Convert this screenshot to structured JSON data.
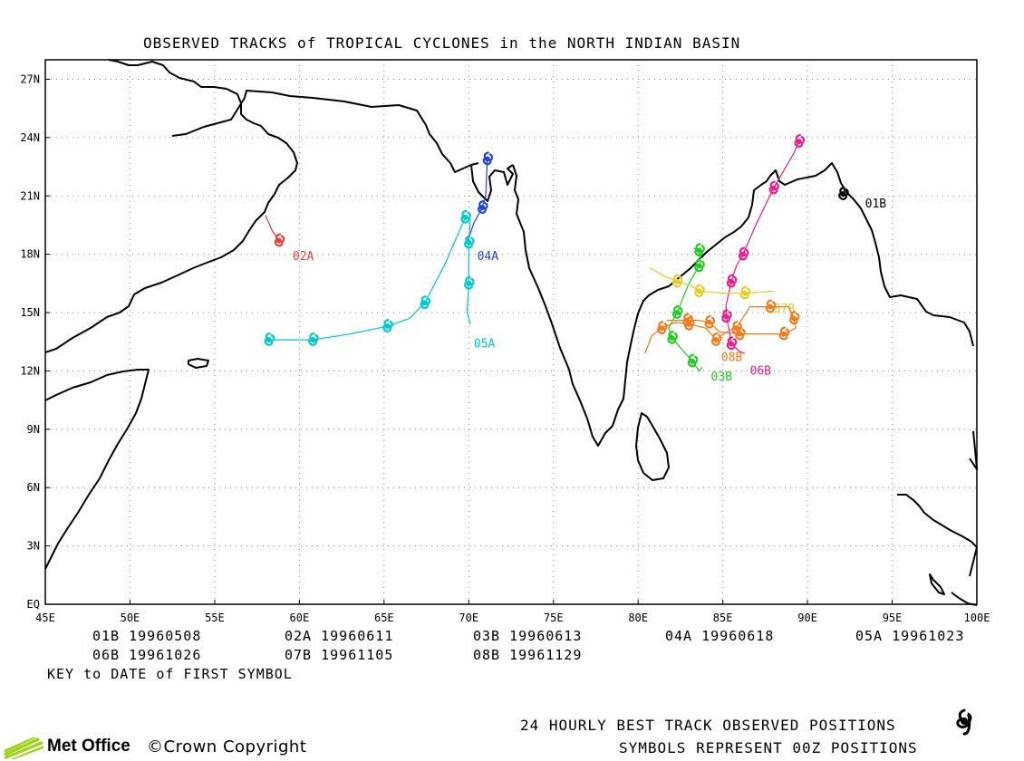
{
  "title": "OBSERVED TRACKS of TROPICAL CYCLONES in the NORTH INDIAN BASIN",
  "axes": {
    "x_ticks": [
      "45E",
      "50E",
      "55E",
      "60E",
      "65E",
      "70E",
      "75E",
      "80E",
      "85E",
      "90E",
      "95E",
      "100E"
    ],
    "y_ticks": [
      "EQ",
      "3N",
      "6N",
      "9N",
      "12N",
      "15N",
      "18N",
      "21N",
      "24N",
      "27N"
    ],
    "lon_range": [
      45,
      100
    ],
    "lat_range": [
      0,
      28
    ],
    "grid": "dotted"
  },
  "storms": [
    {
      "id": "01B",
      "color": "#000000",
      "first_date": "19960508",
      "points": [
        [
          92.2,
          21.4
        ],
        [
          92.1,
          21.1
        ]
      ],
      "label_pos": [
        93.4,
        20.4
      ]
    },
    {
      "id": "02A",
      "color": "#e8403a",
      "first_date": "19960611",
      "points": [
        [
          58.0,
          20.0
        ],
        [
          58.4,
          19.2
        ],
        [
          58.8,
          18.7
        ]
      ],
      "label_pos": [
        59.6,
        17.7
      ]
    },
    {
      "id": "03B",
      "color": "#22cc22",
      "first_date": "19960613",
      "points": [
        [
          83.8,
          12.2
        ],
        [
          83.6,
          12.0
        ],
        [
          83.2,
          12.5
        ],
        [
          82.7,
          13.0
        ],
        [
          82.0,
          13.7
        ],
        [
          81.8,
          14.2
        ],
        [
          82.3,
          15.0
        ],
        [
          83.0,
          16.5
        ],
        [
          83.6,
          17.4
        ],
        [
          83.7,
          17.8
        ],
        [
          83.6,
          18.2
        ],
        [
          83.3,
          18.3
        ]
      ],
      "label_pos": [
        84.3,
        11.5
      ]
    },
    {
      "id": "04A",
      "color": "#2244dd",
      "first_date": "19960618",
      "points": [
        [
          69.9,
          18.6
        ],
        [
          70.3,
          19.6
        ],
        [
          70.8,
          20.4
        ],
        [
          71.0,
          21.0
        ],
        [
          71.1,
          22.9
        ]
      ],
      "label_pos": [
        70.5,
        17.7
      ]
    },
    {
      "id": "05A",
      "color": "#00c8d0",
      "first_date": "19961023",
      "points": [
        [
          70.1,
          14.4
        ],
        [
          69.9,
          15.0
        ],
        [
          70.0,
          16.5
        ],
        [
          70.0,
          17.7
        ],
        [
          70.0,
          18.6
        ],
        [
          70.1,
          19.8
        ],
        [
          69.8,
          19.9
        ],
        [
          68.6,
          17.5
        ],
        [
          67.4,
          15.5
        ],
        [
          66.5,
          14.7
        ],
        [
          65.2,
          14.3
        ],
        [
          63.0,
          13.9
        ],
        [
          60.8,
          13.6
        ],
        [
          60.6,
          13.6
        ],
        [
          58.2,
          13.6
        ]
      ],
      "label_pos": [
        70.3,
        13.2
      ]
    },
    {
      "id": "06B",
      "color": "#ee1c8c",
      "first_date": "19961026",
      "points": [
        [
          86.3,
          12.9
        ],
        [
          86.0,
          13.0
        ],
        [
          85.5,
          13.4
        ],
        [
          85.4,
          14.0
        ],
        [
          85.2,
          14.8
        ],
        [
          85.2,
          15.4
        ],
        [
          85.5,
          16.6
        ],
        [
          85.8,
          17.4
        ],
        [
          86.2,
          18.0
        ],
        [
          87.0,
          19.6
        ],
        [
          88.0,
          21.4
        ],
        [
          89.2,
          23.2
        ],
        [
          89.5,
          23.8
        ]
      ],
      "label_pos": [
        86.6,
        11.8
      ]
    },
    {
      "id": "07B",
      "color": "#e8cc2a",
      "first_date": "19961105",
      "points": [
        [
          80.7,
          17.3
        ],
        [
          81.5,
          16.9
        ],
        [
          82.3,
          16.6
        ],
        [
          83.1,
          16.4
        ],
        [
          83.6,
          16.1
        ],
        [
          85.0,
          16.0
        ],
        [
          86.3,
          16.0
        ],
        [
          88.0,
          16.1
        ]
      ],
      "label_pos": [
        88.0,
        15.0
      ]
    },
    {
      "id": "08B",
      "color": "#f07c20",
      "first_date": "19961129",
      "points": [
        [
          80.4,
          12.9
        ],
        [
          80.8,
          13.8
        ],
        [
          81.4,
          14.2
        ],
        [
          82.2,
          14.5
        ],
        [
          83.0,
          14.4
        ],
        [
          84.0,
          14.2
        ],
        [
          84.6,
          13.6
        ],
        [
          85.2,
          14.0
        ],
        [
          85.8,
          14.2
        ],
        [
          86.6,
          15.3
        ],
        [
          87.8,
          15.3
        ],
        [
          88.9,
          15.3
        ],
        [
          89.2,
          14.7
        ],
        [
          89.3,
          14.2
        ],
        [
          88.6,
          13.9
        ],
        [
          87.3,
          13.9
        ],
        [
          86.0,
          13.9
        ],
        [
          84.8,
          14.0
        ],
        [
          84.2,
          14.5
        ],
        [
          83.6,
          14.6
        ],
        [
          82.9,
          14.6
        ],
        [
          81.7,
          14.6
        ]
      ],
      "label_pos": [
        84.9,
        12.5
      ]
    }
  ],
  "key": {
    "rows": [
      [
        {
          "id": "01B",
          "date": "19960508"
        },
        {
          "id": "02A",
          "date": "19960611"
        },
        {
          "id": "03B",
          "date": "19960613"
        },
        {
          "id": "04A",
          "date": "19960618"
        },
        {
          "id": "05A",
          "date": "19961023"
        }
      ],
      [
        {
          "id": "06B",
          "date": "19961026"
        },
        {
          "id": "07B",
          "date": "19961105"
        },
        {
          "id": "08B",
          "date": "19961129"
        }
      ]
    ],
    "caption": "KEY to DATE of FIRST SYMBOL"
  },
  "footer": {
    "logo_text": "Met Office",
    "copyright": "©Crown Copyright",
    "legend_line1": "24 HOURLY BEST TRACK OBSERVED POSITIONS",
    "legend_line2": "SYMBOLS REPRESENT 00Z POSITIONS",
    "legend_icon": "tropical-cyclone-symbol-icon"
  },
  "colors": {
    "coastline": "#000000",
    "grid": "#888888",
    "logo_green": "#9fd21c"
  }
}
